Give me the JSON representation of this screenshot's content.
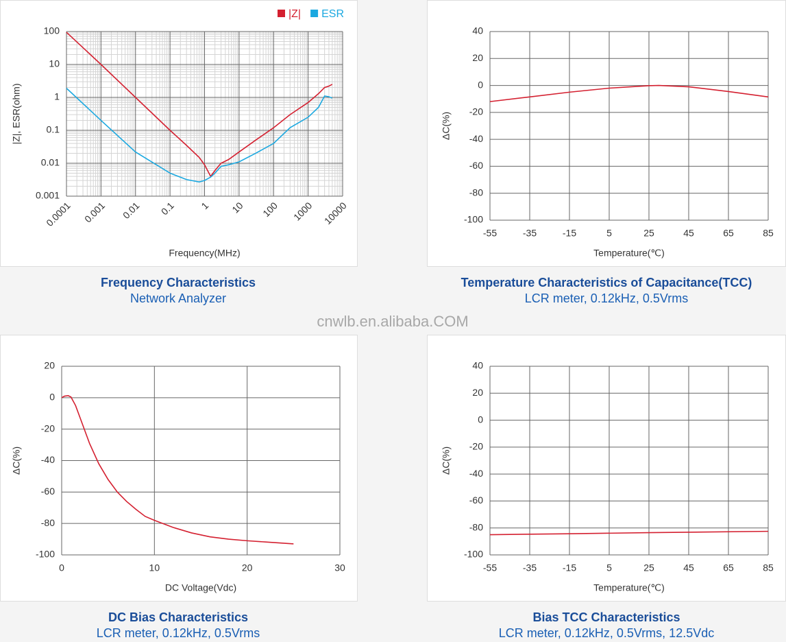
{
  "watermark": "cnwlb.en.alibaba.COM",
  "chart_data": [
    {
      "type": "line",
      "title": "Frequency Characteristics",
      "subtitle": "Network Analyzer",
      "x_label": "Frequency(MHz)",
      "y_label": "|Z|, ESR(ohm)",
      "xlog": true,
      "ylog": true,
      "grid": true,
      "minor_grid": true,
      "legend": "top-right",
      "xlim": [
        0.0001,
        10000
      ],
      "xticks": [
        0.0001,
        0.001,
        0.01,
        0.1,
        1,
        10,
        100,
        1000,
        10000
      ],
      "ylim": [
        0.001,
        100
      ],
      "yticks": [
        0.001,
        0.01,
        0.1,
        1,
        10,
        100
      ],
      "x": [
        0.0001,
        0.001,
        0.01,
        0.1,
        0.3,
        0.7,
        1,
        1.5,
        2,
        3,
        5,
        10,
        30,
        100,
        300,
        1000,
        2000,
        3000,
        4000,
        5000
      ],
      "series": [
        {
          "name": "|Z|",
          "color": "#d42030",
          "values": [
            95,
            10,
            1,
            0.1,
            0.035,
            0.015,
            0.009,
            0.004,
            0.006,
            0.01,
            0.013,
            0.022,
            0.05,
            0.12,
            0.3,
            0.7,
            1.3,
            2,
            2.2,
            2.5
          ]
        },
        {
          "name": "ESR",
          "color": "#1ba8e0",
          "values": [
            1.9,
            0.2,
            0.022,
            0.005,
            0.0032,
            0.0027,
            0.003,
            0.0038,
            0.005,
            0.008,
            0.009,
            0.011,
            0.02,
            0.04,
            0.12,
            0.25,
            0.5,
            1.1,
            1.05,
            0.95
          ]
        }
      ]
    },
    {
      "type": "line",
      "title": "Temperature Characteristics of Capacitance(TCC)",
      "subtitle": "LCR meter, 0.12kHz, 0.5Vrms",
      "x_label": "Temperature(℃)",
      "y_label": "ΔC(%)",
      "grid": true,
      "color": "#d42030",
      "xlim": [
        -55,
        85
      ],
      "xticks": [
        -55,
        -35,
        -15,
        5,
        25,
        45,
        65,
        85
      ],
      "ylim": [
        -100,
        40
      ],
      "yticks": [
        -100,
        -80,
        -60,
        -40,
        -20,
        0,
        20,
        40
      ],
      "x": [
        -55,
        -35,
        -15,
        5,
        25,
        30,
        45,
        65,
        85
      ],
      "values": [
        -12,
        -8.5,
        -5,
        -2,
        -0.2,
        0,
        -1,
        -4.5,
        -8.5
      ]
    },
    {
      "type": "line",
      "title": "DC Bias Characteristics",
      "subtitle": "LCR meter, 0.12kHz, 0.5Vrms",
      "x_label": "DC Voltage(Vdc)",
      "y_label": "ΔC(%)",
      "grid": true,
      "color": "#d42030",
      "xlim": [
        0,
        30
      ],
      "xticks": [
        0,
        10,
        20,
        30
      ],
      "ylim": [
        -100,
        20
      ],
      "yticks": [
        -100,
        -80,
        -60,
        -40,
        -20,
        0,
        20
      ],
      "x": [
        0,
        0.3,
        0.7,
        1,
        1.5,
        2,
        3,
        4,
        5,
        6,
        7,
        8,
        9,
        10,
        12,
        14,
        16,
        18,
        20,
        22,
        25
      ],
      "values": [
        0,
        1,
        1.3,
        0.5,
        -5,
        -13,
        -29,
        -42,
        -52,
        -60,
        -66,
        -71,
        -75.5,
        -78,
        -82.5,
        -86,
        -88.5,
        -90,
        -91,
        -91.8,
        -93
      ]
    },
    {
      "type": "line",
      "title": "Bias TCC Characteristics",
      "subtitle": "LCR meter, 0.12kHz, 0.5Vrms, 12.5Vdc",
      "x_label": "Temperature(℃)",
      "y_label": "ΔC(%)",
      "grid": true,
      "color": "#d42030",
      "xlim": [
        -55,
        85
      ],
      "xticks": [
        -55,
        -35,
        -15,
        5,
        25,
        45,
        65,
        85
      ],
      "ylim": [
        -100,
        40
      ],
      "yticks": [
        -100,
        -80,
        -60,
        -40,
        -20,
        0,
        20,
        40
      ],
      "x": [
        -55,
        -15,
        25,
        85
      ],
      "values": [
        -85,
        -84.3,
        -83.5,
        -82.5
      ]
    }
  ]
}
